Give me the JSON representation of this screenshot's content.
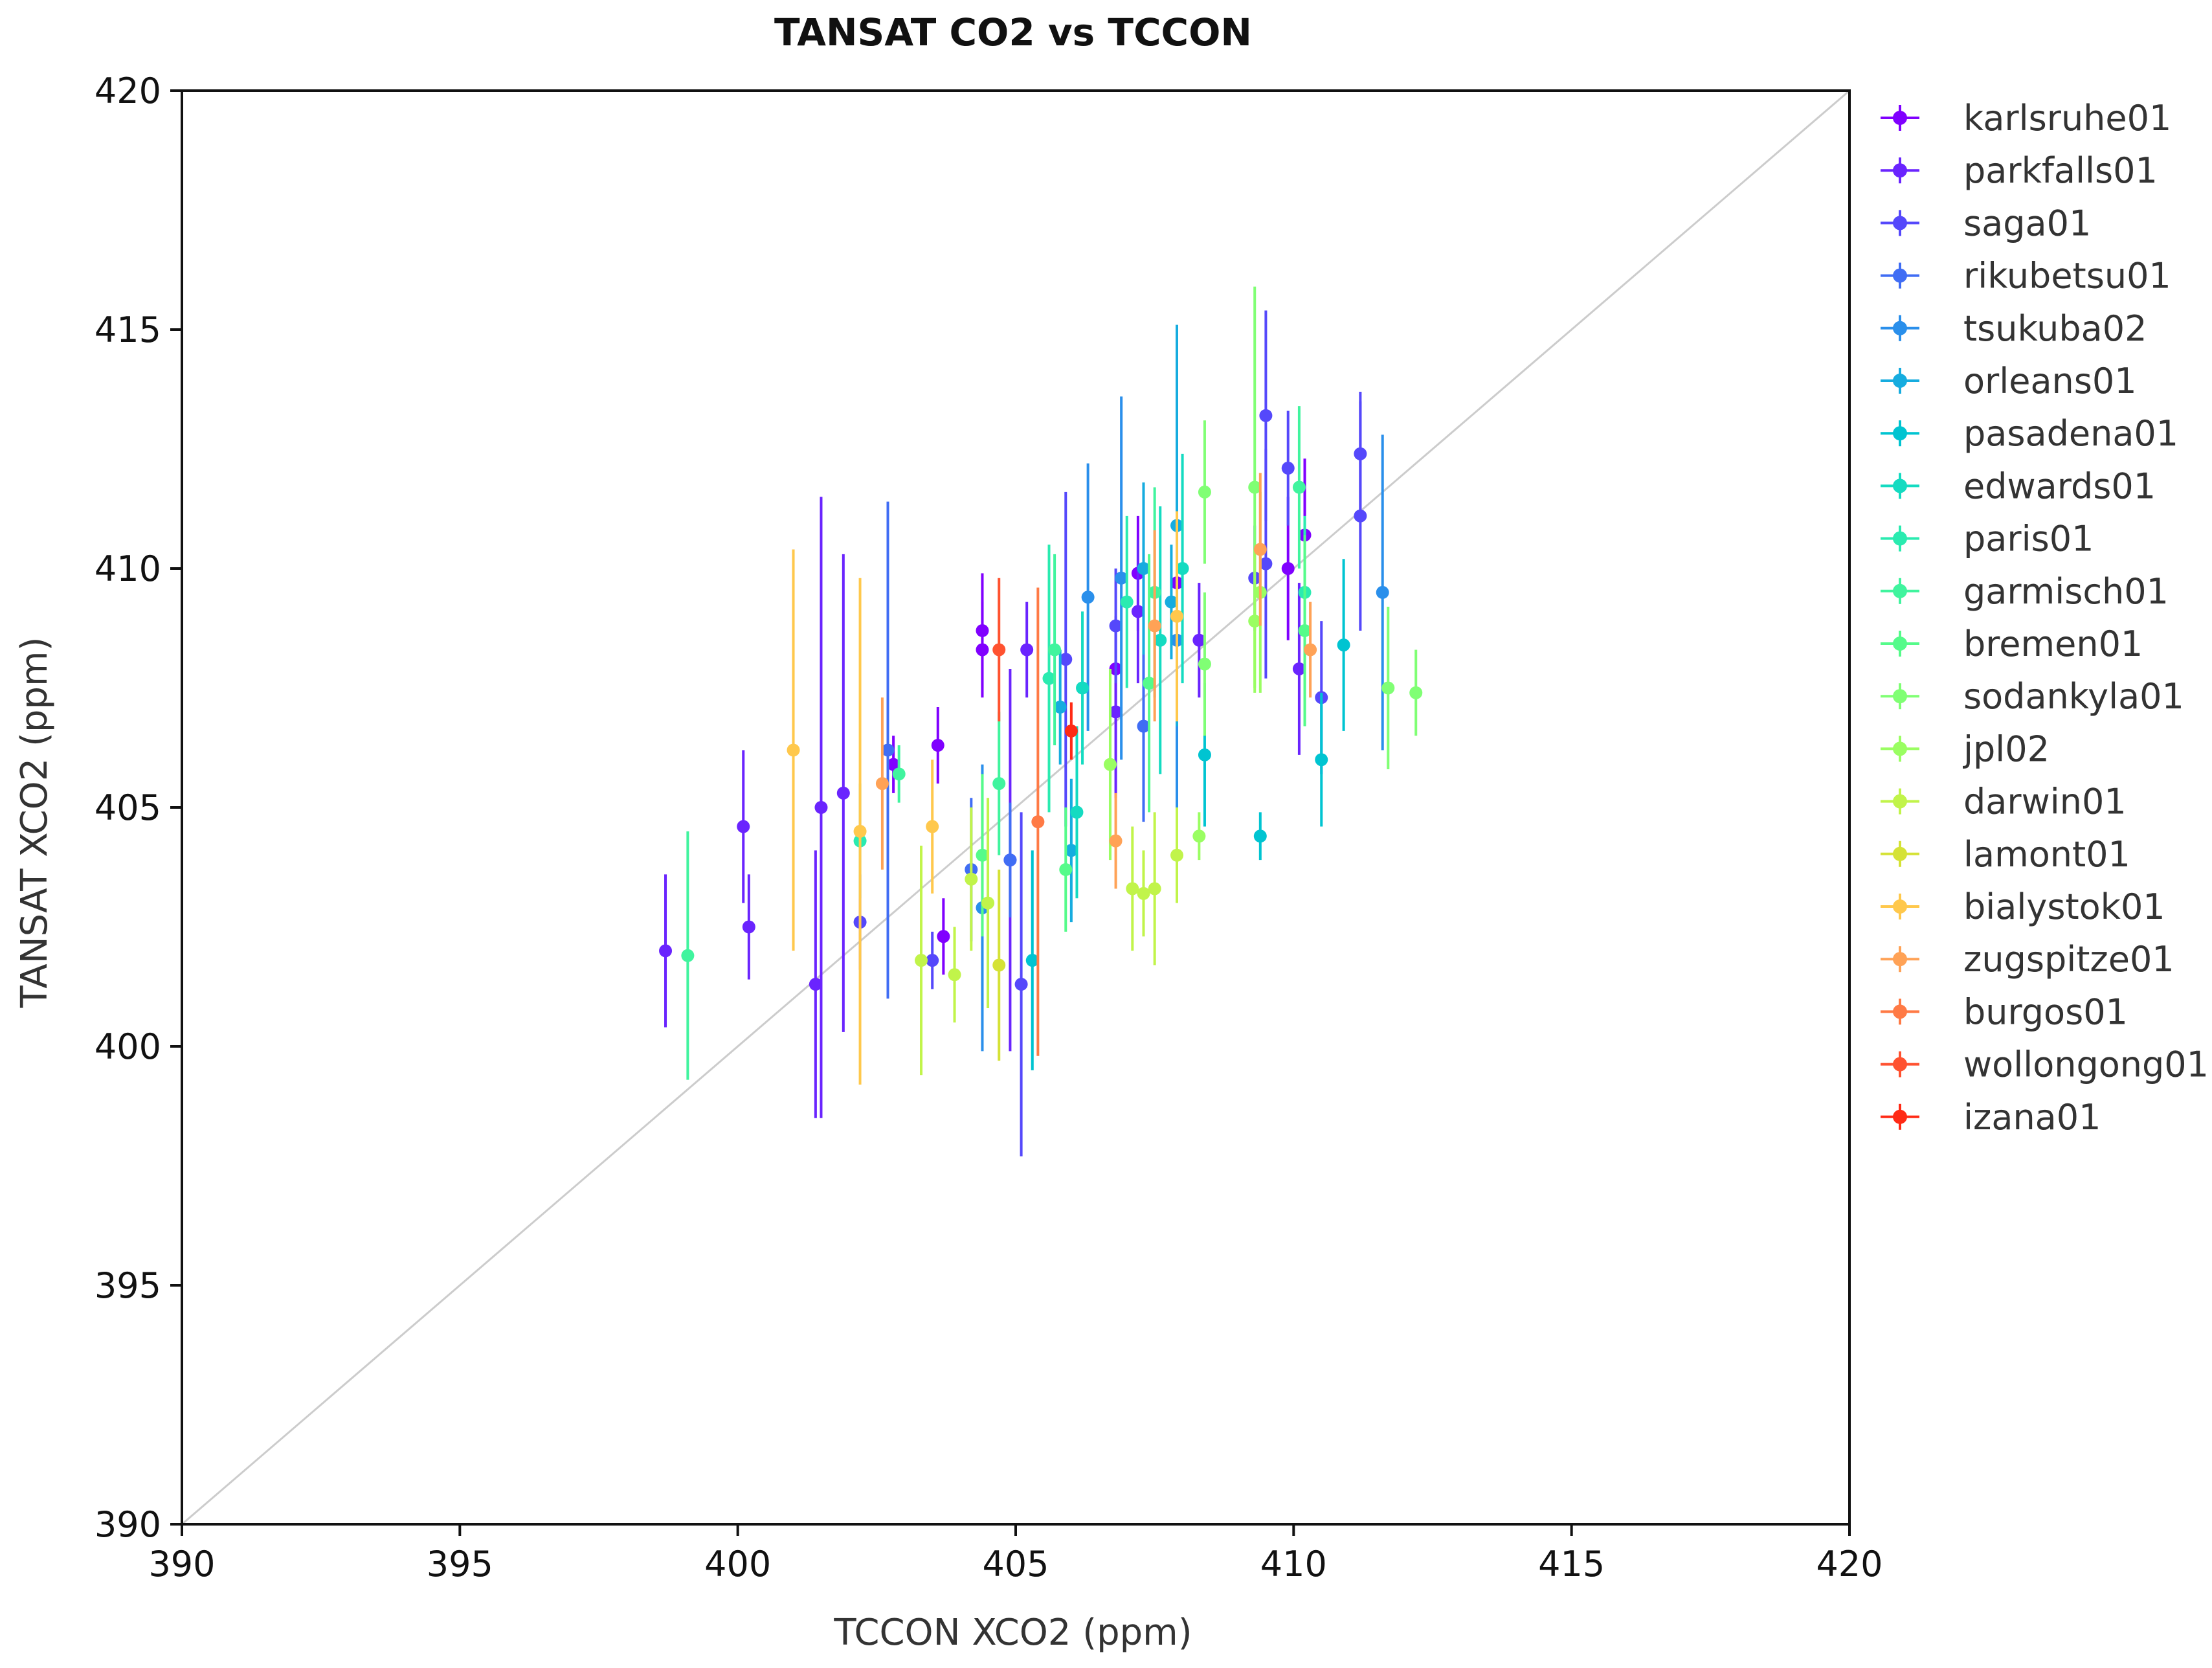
{
  "chart_data": {
    "type": "scatter",
    "title": "TANSAT CO2 vs TCCON",
    "xlabel": "TCCON XCO2 (ppm)",
    "ylabel": "TANSAT XCO2 (ppm)",
    "xlim": [
      390,
      420
    ],
    "ylim": [
      390,
      420
    ],
    "xticks": [
      "390",
      "395",
      "400",
      "405",
      "410",
      "415",
      "420"
    ],
    "yticks": [
      "390",
      "395",
      "400",
      "405",
      "410",
      "415",
      "420"
    ],
    "grid": false,
    "legend_position": "right, outside plot",
    "reference_line": {
      "type": "1:1",
      "color": "#cccccc"
    },
    "series": [
      {
        "name": "karlsruhe01",
        "color": "#8000ff",
        "points": [
          {
            "x": 403.6,
            "y": 406.3,
            "err": 0.8
          },
          {
            "x": 404.4,
            "y": 408.7,
            "err": 1.2
          },
          {
            "x": 404.4,
            "y": 408.3,
            "err": 1.0
          },
          {
            "x": 403.7,
            "y": 402.3,
            "err": 0.8
          },
          {
            "x": 402.8,
            "y": 405.9,
            "err": 0.6
          },
          {
            "x": 407.2,
            "y": 409.9,
            "err": 1.2
          },
          {
            "x": 407.9,
            "y": 409.7,
            "err": 1.4
          },
          {
            "x": 406.8,
            "y": 407.9,
            "err": 1.1
          },
          {
            "x": 409.9,
            "y": 410.0,
            "err": 1.5
          },
          {
            "x": 410.2,
            "y": 410.7,
            "err": 1.6
          }
        ]
      },
      {
        "name": "parkfalls01",
        "color": "#6a24fe",
        "points": [
          {
            "x": 398.7,
            "y": 402.0,
            "err": 1.6
          },
          {
            "x": 400.1,
            "y": 404.6,
            "err": 1.6
          },
          {
            "x": 400.2,
            "y": 402.5,
            "err": 1.1
          },
          {
            "x": 401.4,
            "y": 401.3,
            "err": 2.8
          },
          {
            "x": 401.5,
            "y": 405.0,
            "err": 6.5
          },
          {
            "x": 401.9,
            "y": 405.3,
            "err": 5.0
          },
          {
            "x": 405.2,
            "y": 408.3,
            "err": 1.0
          },
          {
            "x": 404.9,
            "y": 403.9,
            "err": 4.0
          },
          {
            "x": 406.8,
            "y": 407.0,
            "err": 1.8
          },
          {
            "x": 407.2,
            "y": 409.1,
            "err": 1.5
          },
          {
            "x": 408.3,
            "y": 408.5,
            "err": 1.2
          },
          {
            "x": 410.1,
            "y": 407.9,
            "err": 1.8
          }
        ]
      },
      {
        "name": "saga01",
        "color": "#5548fb",
        "points": [
          {
            "x": 402.2,
            "y": 402.6,
            "err": 1.0
          },
          {
            "x": 403.5,
            "y": 401.8,
            "err": 0.6
          },
          {
            "x": 405.1,
            "y": 401.3,
            "err": 3.6
          },
          {
            "x": 405.9,
            "y": 408.1,
            "err": 3.5
          },
          {
            "x": 406.8,
            "y": 408.8,
            "err": 1.2
          },
          {
            "x": 409.3,
            "y": 409.8,
            "err": 1.1
          },
          {
            "x": 409.5,
            "y": 413.2,
            "err": 2.2
          },
          {
            "x": 409.9,
            "y": 412.1,
            "err": 1.2
          },
          {
            "x": 409.5,
            "y": 410.1,
            "err": 2.4
          },
          {
            "x": 410.5,
            "y": 407.3,
            "err": 1.6
          },
          {
            "x": 411.2,
            "y": 412.4,
            "err": 1.3
          },
          {
            "x": 411.2,
            "y": 411.1,
            "err": 2.4
          }
        ]
      },
      {
        "name": "rikubetsu01",
        "color": "#406df4",
        "points": [
          {
            "x": 402.7,
            "y": 406.2,
            "err": 5.2
          },
          {
            "x": 404.2,
            "y": 403.7,
            "err": 1.5
          },
          {
            "x": 404.9,
            "y": 403.9,
            "err": 1.2
          },
          {
            "x": 407.3,
            "y": 406.7,
            "err": 2.0
          }
        ]
      },
      {
        "name": "tsukuba02",
        "color": "#2a8feb",
        "points": [
          {
            "x": 406.3,
            "y": 409.4,
            "err": 2.8
          },
          {
            "x": 406.9,
            "y": 409.8,
            "err": 3.8
          },
          {
            "x": 407.9,
            "y": 408.5,
            "err": 3.5
          },
          {
            "x": 411.6,
            "y": 409.5,
            "err": 3.3
          },
          {
            "x": 404.4,
            "y": 402.9,
            "err": 3.0
          }
        ]
      },
      {
        "name": "orleans01",
        "color": "#16acdf",
        "points": [
          {
            "x": 405.8,
            "y": 407.1,
            "err": 1.2
          },
          {
            "x": 406.0,
            "y": 404.1,
            "err": 1.5
          },
          {
            "x": 407.3,
            "y": 410.0,
            "err": 1.8
          },
          {
            "x": 407.8,
            "y": 409.3,
            "err": 1.2
          },
          {
            "x": 407.9,
            "y": 410.9,
            "err": 4.2
          }
        ]
      },
      {
        "name": "pasadena01",
        "color": "#00c4d1",
        "points": [
          {
            "x": 405.3,
            "y": 401.8,
            "err": 2.3
          },
          {
            "x": 408.4,
            "y": 406.1,
            "err": 1.5
          },
          {
            "x": 409.4,
            "y": 404.4,
            "err": 0.5
          },
          {
            "x": 410.5,
            "y": 406.0,
            "err": 1.4
          },
          {
            "x": 410.9,
            "y": 408.4,
            "err": 1.8
          }
        ]
      },
      {
        "name": "edwards01",
        "color": "#14dbc1",
        "points": [
          {
            "x": 406.1,
            "y": 404.9,
            "err": 1.8
          },
          {
            "x": 406.2,
            "y": 407.5,
            "err": 1.6
          },
          {
            "x": 407.6,
            "y": 408.5,
            "err": 2.8
          },
          {
            "x": 408.0,
            "y": 410.0,
            "err": 2.4
          }
        ]
      },
      {
        "name": "paris01",
        "color": "#2aebb0",
        "points": [
          {
            "x": 402.2,
            "y": 404.3,
            "err": 1.2
          },
          {
            "x": 405.6,
            "y": 407.7,
            "err": 2.8
          },
          {
            "x": 407.0,
            "y": 409.3,
            "err": 1.8
          },
          {
            "x": 410.2,
            "y": 409.5,
            "err": 1.6
          }
        ]
      },
      {
        "name": "garmisch01",
        "color": "#40f49e",
        "points": [
          {
            "x": 399.1,
            "y": 401.9,
            "err": 2.6
          },
          {
            "x": 402.9,
            "y": 405.7,
            "err": 0.6
          },
          {
            "x": 404.7,
            "y": 405.5,
            "err": 1.5
          },
          {
            "x": 405.7,
            "y": 408.3,
            "err": 2.0
          },
          {
            "x": 407.5,
            "y": 409.5,
            "err": 2.2
          },
          {
            "x": 410.1,
            "y": 411.7,
            "err": 1.7
          }
        ]
      },
      {
        "name": "bremen01",
        "color": "#55fb8a",
        "points": [
          {
            "x": 404.4,
            "y": 404.0,
            "err": 1.7
          },
          {
            "x": 405.9,
            "y": 403.7,
            "err": 1.3
          },
          {
            "x": 407.4,
            "y": 407.6,
            "err": 2.7
          },
          {
            "x": 410.2,
            "y": 408.7,
            "err": 2.0
          }
        ]
      },
      {
        "name": "sodankyla01",
        "color": "#80ff74",
        "points": [
          {
            "x": 408.4,
            "y": 411.6,
            "err": 1.5
          },
          {
            "x": 409.3,
            "y": 411.7,
            "err": 4.2
          },
          {
            "x": 411.7,
            "y": 407.5,
            "err": 1.7
          },
          {
            "x": 412.2,
            "y": 407.4,
            "err": 0.9
          },
          {
            "x": 408.4,
            "y": 408.0,
            "err": 1.5
          }
        ]
      },
      {
        "name": "jpl02",
        "color": "#9afe62",
        "points": [
          {
            "x": 406.7,
            "y": 405.9,
            "err": 2.0
          },
          {
            "x": 408.3,
            "y": 404.4,
            "err": 0.5
          },
          {
            "x": 409.3,
            "y": 408.9,
            "err": 1.5
          },
          {
            "x": 409.4,
            "y": 409.5,
            "err": 2.1
          }
        ]
      },
      {
        "name": "darwin01",
        "color": "#c1f44a",
        "points": [
          {
            "x": 403.3,
            "y": 401.8,
            "err": 2.4
          },
          {
            "x": 403.9,
            "y": 401.5,
            "err": 1.0
          },
          {
            "x": 404.2,
            "y": 403.5,
            "err": 1.5
          },
          {
            "x": 404.5,
            "y": 403.0,
            "err": 2.2
          },
          {
            "x": 407.1,
            "y": 403.3,
            "err": 1.3
          },
          {
            "x": 407.3,
            "y": 403.2,
            "err": 0.9
          },
          {
            "x": 407.5,
            "y": 403.3,
            "err": 1.6
          },
          {
            "x": 407.9,
            "y": 404.0,
            "err": 1.0
          }
        ]
      },
      {
        "name": "lamont01",
        "color": "#d5e236",
        "points": [
          {
            "x": 404.7,
            "y": 401.7,
            "err": 2.0
          }
        ]
      },
      {
        "name": "bialystok01",
        "color": "#ffc84c",
        "points": [
          {
            "x": 401.0,
            "y": 406.2,
            "err": 4.2
          },
          {
            "x": 402.2,
            "y": 404.5,
            "err": 5.3
          },
          {
            "x": 403.5,
            "y": 404.6,
            "err": 1.4
          },
          {
            "x": 407.9,
            "y": 409.0,
            "err": 2.2
          }
        ]
      },
      {
        "name": "zugspitze01",
        "color": "#ffa256",
        "points": [
          {
            "x": 402.6,
            "y": 405.5,
            "err": 1.8
          },
          {
            "x": 406.8,
            "y": 404.3,
            "err": 1.0
          },
          {
            "x": 407.5,
            "y": 408.8,
            "err": 2.0
          },
          {
            "x": 409.4,
            "y": 410.4,
            "err": 1.6
          },
          {
            "x": 410.3,
            "y": 408.3,
            "err": 1.0
          }
        ]
      },
      {
        "name": "burgos01",
        "color": "#ff7a45",
        "points": [
          {
            "x": 405.4,
            "y": 404.7,
            "err": 4.9
          }
        ]
      },
      {
        "name": "wollongong01",
        "color": "#ff5230",
        "points": [
          {
            "x": 404.7,
            "y": 408.3,
            "err": 1.5
          }
        ]
      },
      {
        "name": "izana01",
        "color": "#ff2a15",
        "points": [
          {
            "x": 406.0,
            "y": 406.6,
            "err": 0.6
          }
        ]
      }
    ]
  }
}
